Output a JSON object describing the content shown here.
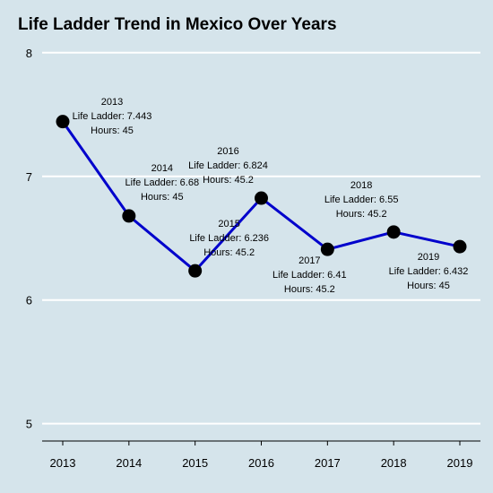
{
  "chart_data": {
    "type": "line",
    "title": "Life Ladder Trend in Mexico Over Years",
    "xlabel": "",
    "ylabel": "",
    "categories": [
      "2013",
      "2014",
      "2015",
      "2016",
      "2017",
      "2018",
      "2019"
    ],
    "series": [
      {
        "values": [
          7.443,
          6.68,
          6.236,
          6.824,
          6.41,
          6.55,
          6.432
        ],
        "color": "#0000cc"
      }
    ],
    "yticks": [
      "5",
      "6",
      "7",
      "8"
    ],
    "ylim": [
      4.86,
      8.1
    ],
    "grid": true,
    "point_color": "#000000",
    "background": "#d5e4eb",
    "annotations": [
      {
        "year": "2013",
        "life": "Life Ladder: 7.443",
        "hours": "Hours: 45"
      },
      {
        "year": "2014",
        "life": "Life Ladder: 6.68",
        "hours": "Hours: 45"
      },
      {
        "year": "2015",
        "life": "Life Ladder: 6.236",
        "hours": "Hours: 45.2"
      },
      {
        "year": "2016",
        "life": "Life Ladder: 6.824",
        "hours": "Hours: 45.2"
      },
      {
        "year": "2017",
        "life": "Life Ladder: 6.41",
        "hours": "Hours: 45.2"
      },
      {
        "year": "2018",
        "life": "Life Ladder: 6.55",
        "hours": "Hours: 45.2"
      },
      {
        "year": "2019",
        "life": "Life Ladder: 6.432",
        "hours": "Hours: 45"
      }
    ]
  }
}
